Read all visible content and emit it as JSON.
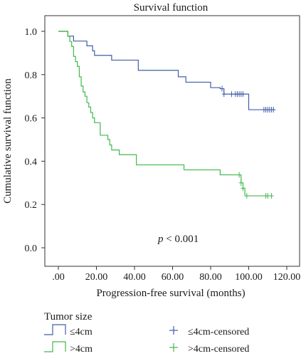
{
  "chart_data": {
    "type": "line",
    "title": "Survival function",
    "xlabel": "Progression-free survival (months)",
    "ylabel": "Cumulative survival function",
    "xlim": [
      0,
      120
    ],
    "ylim": [
      0,
      1.0
    ],
    "x_ticks": [
      0,
      20,
      40,
      60,
      80,
      100,
      120
    ],
    "x_tick_labels": [
      ".00",
      "20.00",
      "40.00",
      "60.00",
      "80.00",
      "100.00",
      "120.00"
    ],
    "y_ticks": [
      0,
      0.2,
      0.4,
      0.6,
      0.8,
      1.0
    ],
    "y_tick_labels": [
      "0.0",
      "0.2",
      "0.4",
      "0.6",
      "0.8",
      "1.0"
    ],
    "annotation": {
      "p": "p",
      "rest": " < 0.001"
    },
    "grid": false,
    "legend_title": "Tumor size",
    "legend_position": "bottom",
    "series": [
      {
        "name": "≤4cm",
        "color": "#3f5fa8",
        "step": [
          [
            0,
            1.0
          ],
          [
            5,
            1.0
          ],
          [
            5,
            0.978
          ],
          [
            8,
            0.978
          ],
          [
            8,
            0.955
          ],
          [
            15,
            0.955
          ],
          [
            15,
            0.933
          ],
          [
            18,
            0.933
          ],
          [
            18,
            0.91
          ],
          [
            19,
            0.91
          ],
          [
            19,
            0.889
          ],
          [
            28,
            0.889
          ],
          [
            28,
            0.867
          ],
          [
            42,
            0.867
          ],
          [
            42,
            0.82
          ],
          [
            63,
            0.82
          ],
          [
            63,
            0.79
          ],
          [
            67,
            0.79
          ],
          [
            67,
            0.765
          ],
          [
            80,
            0.765
          ],
          [
            80,
            0.74
          ],
          [
            85,
            0.74
          ],
          [
            85,
            0.735
          ],
          [
            87,
            0.735
          ],
          [
            87,
            0.71
          ],
          [
            100,
            0.71
          ],
          [
            100,
            0.638
          ],
          [
            114,
            0.638
          ]
        ],
        "censored": [
          86,
          87,
          91,
          93,
          94,
          95,
          96,
          97,
          108,
          109,
          110,
          111,
          112,
          113
        ]
      },
      {
        "name": ">4cm",
        "color": "#41b94a",
        "step": [
          [
            0,
            1.0
          ],
          [
            5,
            1.0
          ],
          [
            5,
            0.977
          ],
          [
            6,
            0.977
          ],
          [
            6,
            0.953
          ],
          [
            7,
            0.953
          ],
          [
            7,
            0.93
          ],
          [
            8,
            0.93
          ],
          [
            8,
            0.884
          ],
          [
            9,
            0.884
          ],
          [
            9,
            0.86
          ],
          [
            10,
            0.86
          ],
          [
            10,
            0.838
          ],
          [
            11,
            0.838
          ],
          [
            11,
            0.79
          ],
          [
            12,
            0.79
          ],
          [
            12,
            0.747
          ],
          [
            13,
            0.747
          ],
          [
            13,
            0.72
          ],
          [
            14,
            0.72
          ],
          [
            14,
            0.7
          ],
          [
            15,
            0.7
          ],
          [
            15,
            0.67
          ],
          [
            16,
            0.67
          ],
          [
            16,
            0.65
          ],
          [
            17,
            0.65
          ],
          [
            17,
            0.625
          ],
          [
            18,
            0.625
          ],
          [
            18,
            0.6
          ],
          [
            19,
            0.6
          ],
          [
            19,
            0.578
          ],
          [
            22,
            0.578
          ],
          [
            22,
            0.52
          ],
          [
            26,
            0.52
          ],
          [
            26,
            0.5
          ],
          [
            27,
            0.5
          ],
          [
            27,
            0.475
          ],
          [
            28,
            0.475
          ],
          [
            28,
            0.452
          ],
          [
            32,
            0.452
          ],
          [
            32,
            0.43
          ],
          [
            41,
            0.43
          ],
          [
            41,
            0.383
          ],
          [
            66,
            0.383
          ],
          [
            66,
            0.36
          ],
          [
            85,
            0.36
          ],
          [
            85,
            0.337
          ],
          [
            96,
            0.337
          ],
          [
            96,
            0.3
          ],
          [
            97,
            0.3
          ],
          [
            97,
            0.275
          ],
          [
            98,
            0.275
          ],
          [
            98,
            0.24
          ],
          [
            112,
            0.24
          ]
        ],
        "censored": [
          95,
          96,
          97,
          99,
          109,
          110,
          112
        ]
      }
    ],
    "legend": {
      "items": [
        {
          "label": "≤4cm",
          "kind": "line",
          "color": "#3f5fa8"
        },
        {
          "label": ">4cm",
          "kind": "line",
          "color": "#41b94a"
        },
        {
          "label": "≤4cm-censored",
          "kind": "plus",
          "color": "#3f5fa8"
        },
        {
          "label": ">4cm-censored",
          "kind": "plus",
          "color": "#41b94a"
        }
      ]
    }
  }
}
